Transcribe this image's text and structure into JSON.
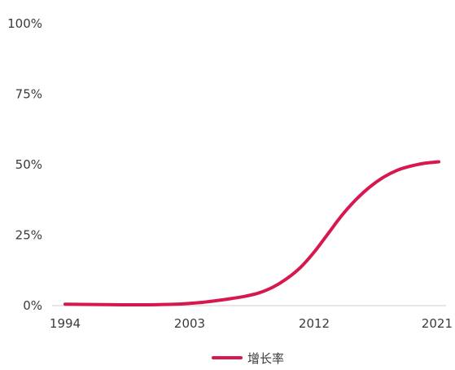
{
  "chart_data": {
    "type": "line",
    "title": "",
    "xlabel": "",
    "ylabel": "",
    "x_ticks": [
      "1994",
      "2003",
      "2012",
      "2021"
    ],
    "y_ticks": [
      "0%",
      "25%",
      "50%",
      "75%",
      "100%"
    ],
    "xlim": [
      1994,
      2021
    ],
    "ylim": [
      0,
      100
    ],
    "grid": false,
    "legend": "bottom-center",
    "series": [
      {
        "name": "增长率",
        "color": "#d6184f",
        "x": [
          1994,
          1996,
          1998,
          2000,
          2002,
          2003,
          2004,
          2005,
          2006,
          2007,
          2008,
          2009,
          2010,
          2011,
          2012,
          2013,
          2014,
          2015,
          2016,
          2017,
          2018,
          2019,
          2020,
          2021
        ],
        "y": [
          0.5,
          0.4,
          0.3,
          0.3,
          0.5,
          0.8,
          1.2,
          1.8,
          2.5,
          3.3,
          4.5,
          6.5,
          9.5,
          13.5,
          19.0,
          25.5,
          32.0,
          37.5,
          42.0,
          45.5,
          48.0,
          49.5,
          50.5,
          51.0
        ]
      }
    ]
  }
}
